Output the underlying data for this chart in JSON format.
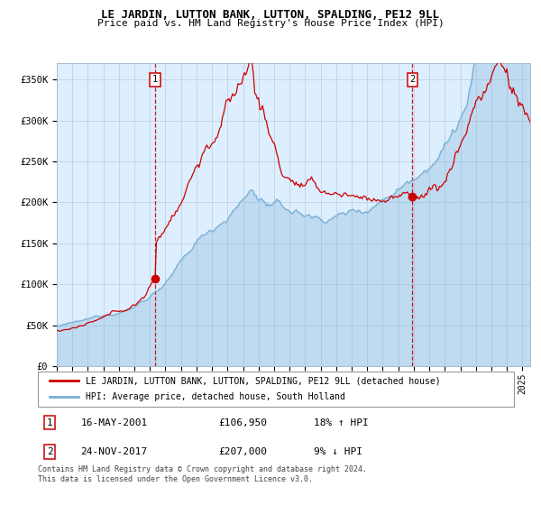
{
  "title": "LE JARDIN, LUTTON BANK, LUTTON, SPALDING, PE12 9LL",
  "subtitle": "Price paid vs. HM Land Registry's House Price Index (HPI)",
  "legend_line1": "LE JARDIN, LUTTON BANK, LUTTON, SPALDING, PE12 9LL (detached house)",
  "legend_line2": "HPI: Average price, detached house, South Holland",
  "transaction1_date": "16-MAY-2001",
  "transaction1_price": "£106,950",
  "transaction1_hpi": "18% ↑ HPI",
  "transaction1_year": 2001.37,
  "transaction1_value": 106950,
  "transaction2_date": "24-NOV-2017",
  "transaction2_price": "£207,000",
  "transaction2_hpi": "9% ↓ HPI",
  "transaction2_year": 2017.9,
  "transaction2_value": 207000,
  "footer": "Contains HM Land Registry data © Crown copyright and database right 2024.\nThis data is licensed under the Open Government Licence v3.0.",
  "red_color": "#cc0000",
  "blue_color": "#7ab0d4",
  "bg_color": "#ddeeff",
  "grid_color": "#bbccdd",
  "ylim": [
    0,
    370000
  ],
  "xlim_start": 1995.0,
  "xlim_end": 2025.5
}
